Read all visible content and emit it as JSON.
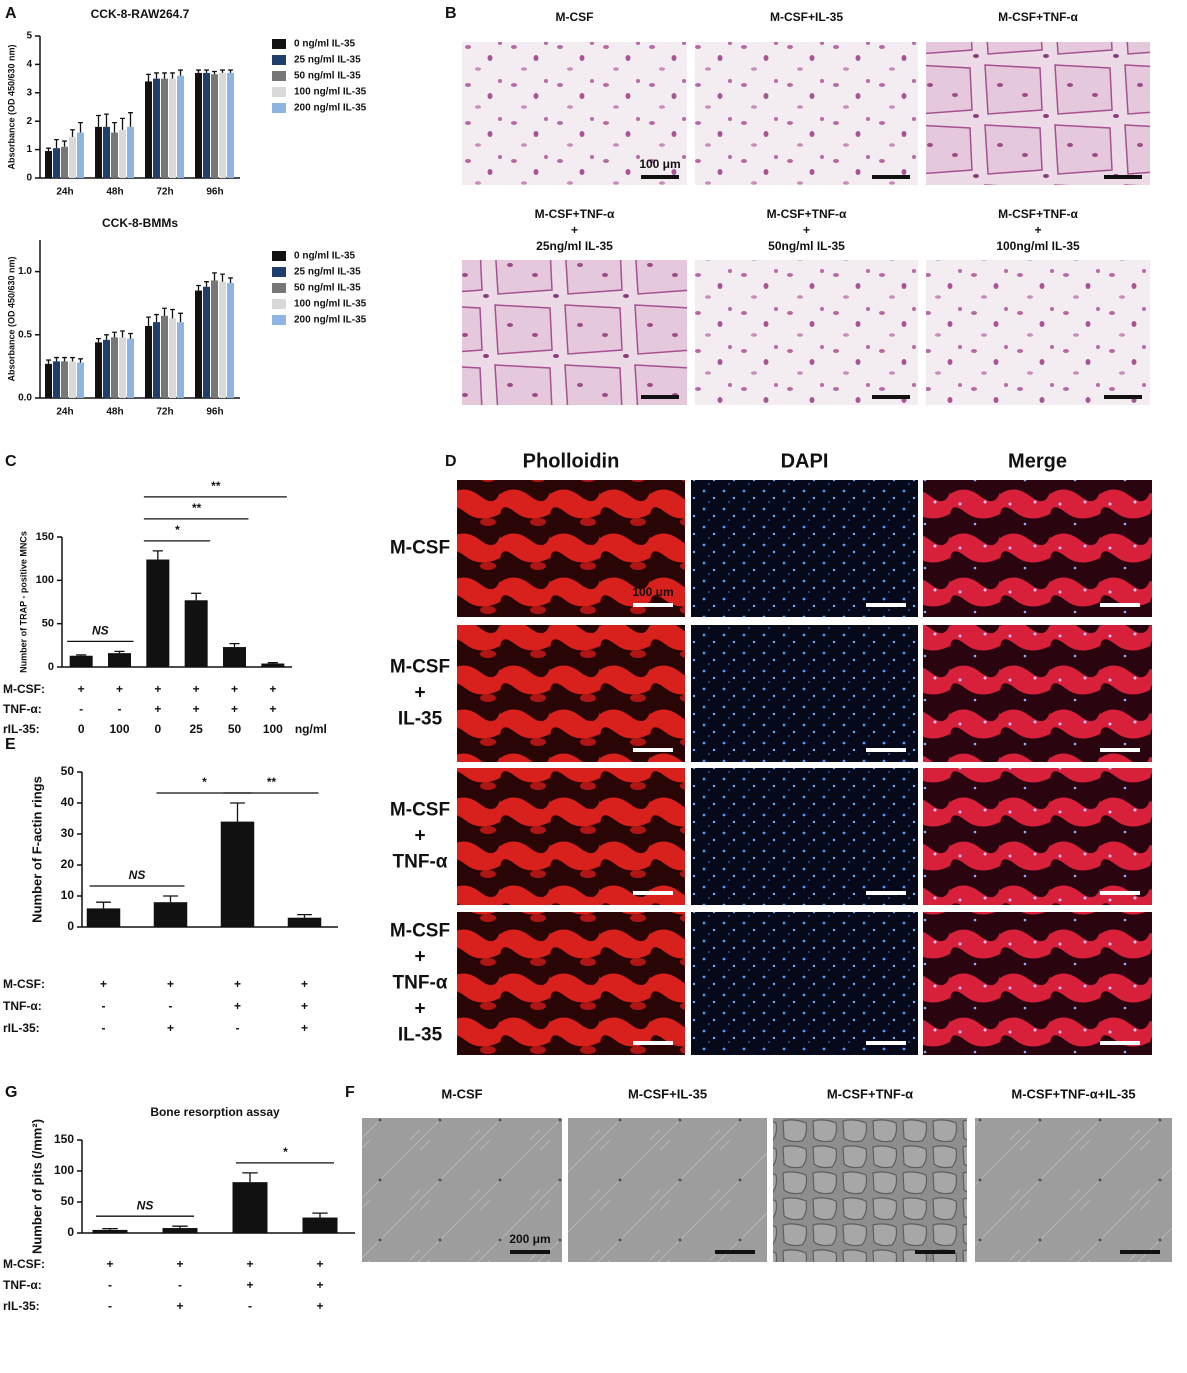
{
  "panel_labels": [
    "A",
    "B",
    "C",
    "D",
    "E",
    "F",
    "G"
  ],
  "chart_data": [
    {
      "type": "bar",
      "title": "CCK-8-RAW264.7",
      "y_label": "Absorbance (OD 450/630 nm)",
      "categories": [
        "24h",
        "48h",
        "72h",
        "96h"
      ],
      "ylim": [
        0,
        5
      ],
      "yticks": [
        0,
        1,
        2,
        3,
        4,
        5
      ],
      "series": [
        {
          "name": "0 ng/ml IL-35",
          "color": "#111111",
          "values": [
            0.95,
            1.8,
            3.4,
            3.7
          ],
          "errors": [
            0.1,
            0.4,
            0.25,
            0.1
          ]
        },
        {
          "name": "25 ng/ml IL-35",
          "color": "#1f3e6e",
          "values": [
            1.05,
            1.8,
            3.5,
            3.7
          ],
          "errors": [
            0.3,
            0.45,
            0.2,
            0.1
          ]
        },
        {
          "name": "50 ng/ml IL-35",
          "color": "#777777",
          "values": [
            1.1,
            1.6,
            3.5,
            3.65
          ],
          "errors": [
            0.2,
            0.35,
            0.2,
            0.1
          ]
        },
        {
          "name": "100 ng/ml IL-35",
          "color": "#d9d9d9",
          "values": [
            1.45,
            1.7,
            3.5,
            3.7
          ],
          "errors": [
            0.25,
            0.4,
            0.2,
            0.1
          ]
        },
        {
          "name": "200 ng/ml IL-35",
          "color": "#8fb4e3",
          "values": [
            1.6,
            1.8,
            3.6,
            3.7
          ],
          "errors": [
            0.35,
            0.5,
            0.2,
            0.1
          ]
        }
      ]
    },
    {
      "type": "bar",
      "title": "CCK-8-BMMs",
      "y_label": "Absorbance (OD 450/630 nm)",
      "categories": [
        "24h",
        "48h",
        "72h",
        "96h"
      ],
      "ylim": [
        0,
        1.25
      ],
      "yticks": [
        {
          "value": 0,
          "label": "0.0"
        },
        0.5,
        {
          "value": 1,
          "label": "1.0"
        }
      ],
      "series": [
        {
          "name": "0 ng/ml IL-35",
          "color": "#111111",
          "values": [
            0.27,
            0.44,
            0.57,
            0.85
          ],
          "errors": [
            0.03,
            0.03,
            0.07,
            0.04
          ]
        },
        {
          "name": "25 ng/ml IL-35",
          "color": "#1f3e6e",
          "values": [
            0.29,
            0.46,
            0.6,
            0.88
          ],
          "errors": [
            0.03,
            0.04,
            0.06,
            0.04
          ]
        },
        {
          "name": "50 ng/ml IL-35",
          "color": "#777777",
          "values": [
            0.29,
            0.48,
            0.65,
            0.93
          ],
          "errors": [
            0.03,
            0.04,
            0.06,
            0.06
          ]
        },
        {
          "name": "100 ng/ml IL-35",
          "color": "#d9d9d9",
          "values": [
            0.29,
            0.48,
            0.63,
            0.92
          ],
          "errors": [
            0.03,
            0.05,
            0.07,
            0.06
          ]
        },
        {
          "name": "200 ng/ml IL-35",
          "color": "#8fb4e3",
          "values": [
            0.28,
            0.47,
            0.6,
            0.91
          ],
          "errors": [
            0.03,
            0.04,
            0.07,
            0.04
          ]
        }
      ]
    },
    {
      "type": "bar",
      "y_label": "Number of TRAP - positive MNCs",
      "color": "#111111",
      "values": [
        13,
        16,
        124,
        77,
        23,
        4
      ],
      "errors": [
        1,
        2,
        10,
        8,
        4,
        1
      ],
      "ylim": [
        0,
        150
      ],
      "yticks": [
        0,
        50,
        100,
        150
      ],
      "conditions": [
        {
          "name": "M-CSF:",
          "values": [
            "+",
            "+",
            "+",
            "+",
            "+",
            "+"
          ]
        },
        {
          "name": "TNF-α:",
          "values": [
            "-",
            "-",
            "+",
            "+",
            "+",
            "+"
          ]
        },
        {
          "name": "rIL-35:",
          "values": [
            "0",
            "100",
            "0",
            "25",
            "50",
            "100"
          ],
          "unit": "ng/ml"
        }
      ],
      "brackets": [
        {
          "between": [
            0,
            1
          ],
          "label": "NS"
        },
        {
          "between": [
            2,
            3
          ],
          "label": "*"
        },
        {
          "between": [
            2,
            4
          ],
          "label": "**"
        },
        {
          "between": [
            2,
            5
          ],
          "label": "**"
        }
      ]
    },
    {
      "type": "bar",
      "y_label": "Number of F-actin rings",
      "color": "#111111",
      "values": [
        6,
        8,
        34,
        3
      ],
      "errors": [
        2,
        2,
        6,
        1
      ],
      "ylim": [
        0,
        50
      ],
      "yticks": [
        0,
        10,
        20,
        30,
        40,
        50
      ],
      "conditions": [
        {
          "name": "M-CSF:",
          "values": [
            "+",
            "+",
            "+",
            "+"
          ]
        },
        {
          "name": "TNF-α:",
          "values": [
            "-",
            "-",
            "+",
            "+"
          ]
        },
        {
          "name": "rIL-35:",
          "values": [
            "-",
            "+",
            "-",
            "+"
          ]
        }
      ],
      "brackets": [
        {
          "between": [
            0,
            1
          ],
          "label": "NS"
        },
        {
          "between": [
            1,
            2
          ],
          "label": "*"
        },
        {
          "between": [
            2,
            3
          ],
          "label": "**"
        }
      ]
    },
    {
      "type": "bar",
      "title": "Bone resorption assay",
      "y_label": "Number of pits (/mm²)",
      "color": "#111111",
      "values": [
        5,
        8,
        82,
        25
      ],
      "errors": [
        2,
        3,
        15,
        7
      ],
      "ylim": [
        0,
        150
      ],
      "yticks": [
        0,
        50,
        100,
        150
      ],
      "conditions": [
        {
          "name": "M-CSF:",
          "values": [
            "+",
            "+",
            "+",
            "+"
          ]
        },
        {
          "name": "TNF-α:",
          "values": [
            "-",
            "-",
            "+",
            "+"
          ]
        },
        {
          "name": "rIL-35:",
          "values": [
            "-",
            "+",
            "-",
            "+"
          ]
        }
      ],
      "brackets": [
        {
          "between": [
            0,
            1
          ],
          "label": "NS"
        },
        {
          "between": [
            2,
            3
          ],
          "label": "*"
        }
      ]
    }
  ],
  "panel_b": {
    "captions": [
      [
        "M-CSF"
      ],
      [
        "M-CSF+IL-35"
      ],
      [
        "M-CSF+TNF-α"
      ],
      [
        "M-CSF+TNF-α",
        "+",
        "25ng/ml IL-35"
      ],
      [
        "M-CSF+TNF-α",
        "+",
        "50ng/ml IL-35"
      ],
      [
        "M-CSF+TNF-α",
        "+",
        "100ng/ml IL-35"
      ]
    ],
    "scale_bar": "100 μm"
  },
  "panel_d": {
    "columns": [
      "Pholloidin",
      "DAPI",
      "Merge"
    ],
    "rows": [
      [
        "M-CSF"
      ],
      [
        "M-CSF",
        "+",
        "IL-35"
      ],
      [
        "M-CSF",
        "+",
        "TNF-α"
      ],
      [
        "M-CSF",
        "+",
        "TNF-α",
        "+",
        "IL-35"
      ]
    ],
    "scale_bar": "100 μm"
  },
  "panel_f": {
    "captions": [
      "M-CSF",
      "M-CSF+IL-35",
      "M-CSF+TNF-α",
      "M-CSF+TNF-α+IL-35"
    ],
    "scale_bar": "200 μm"
  }
}
